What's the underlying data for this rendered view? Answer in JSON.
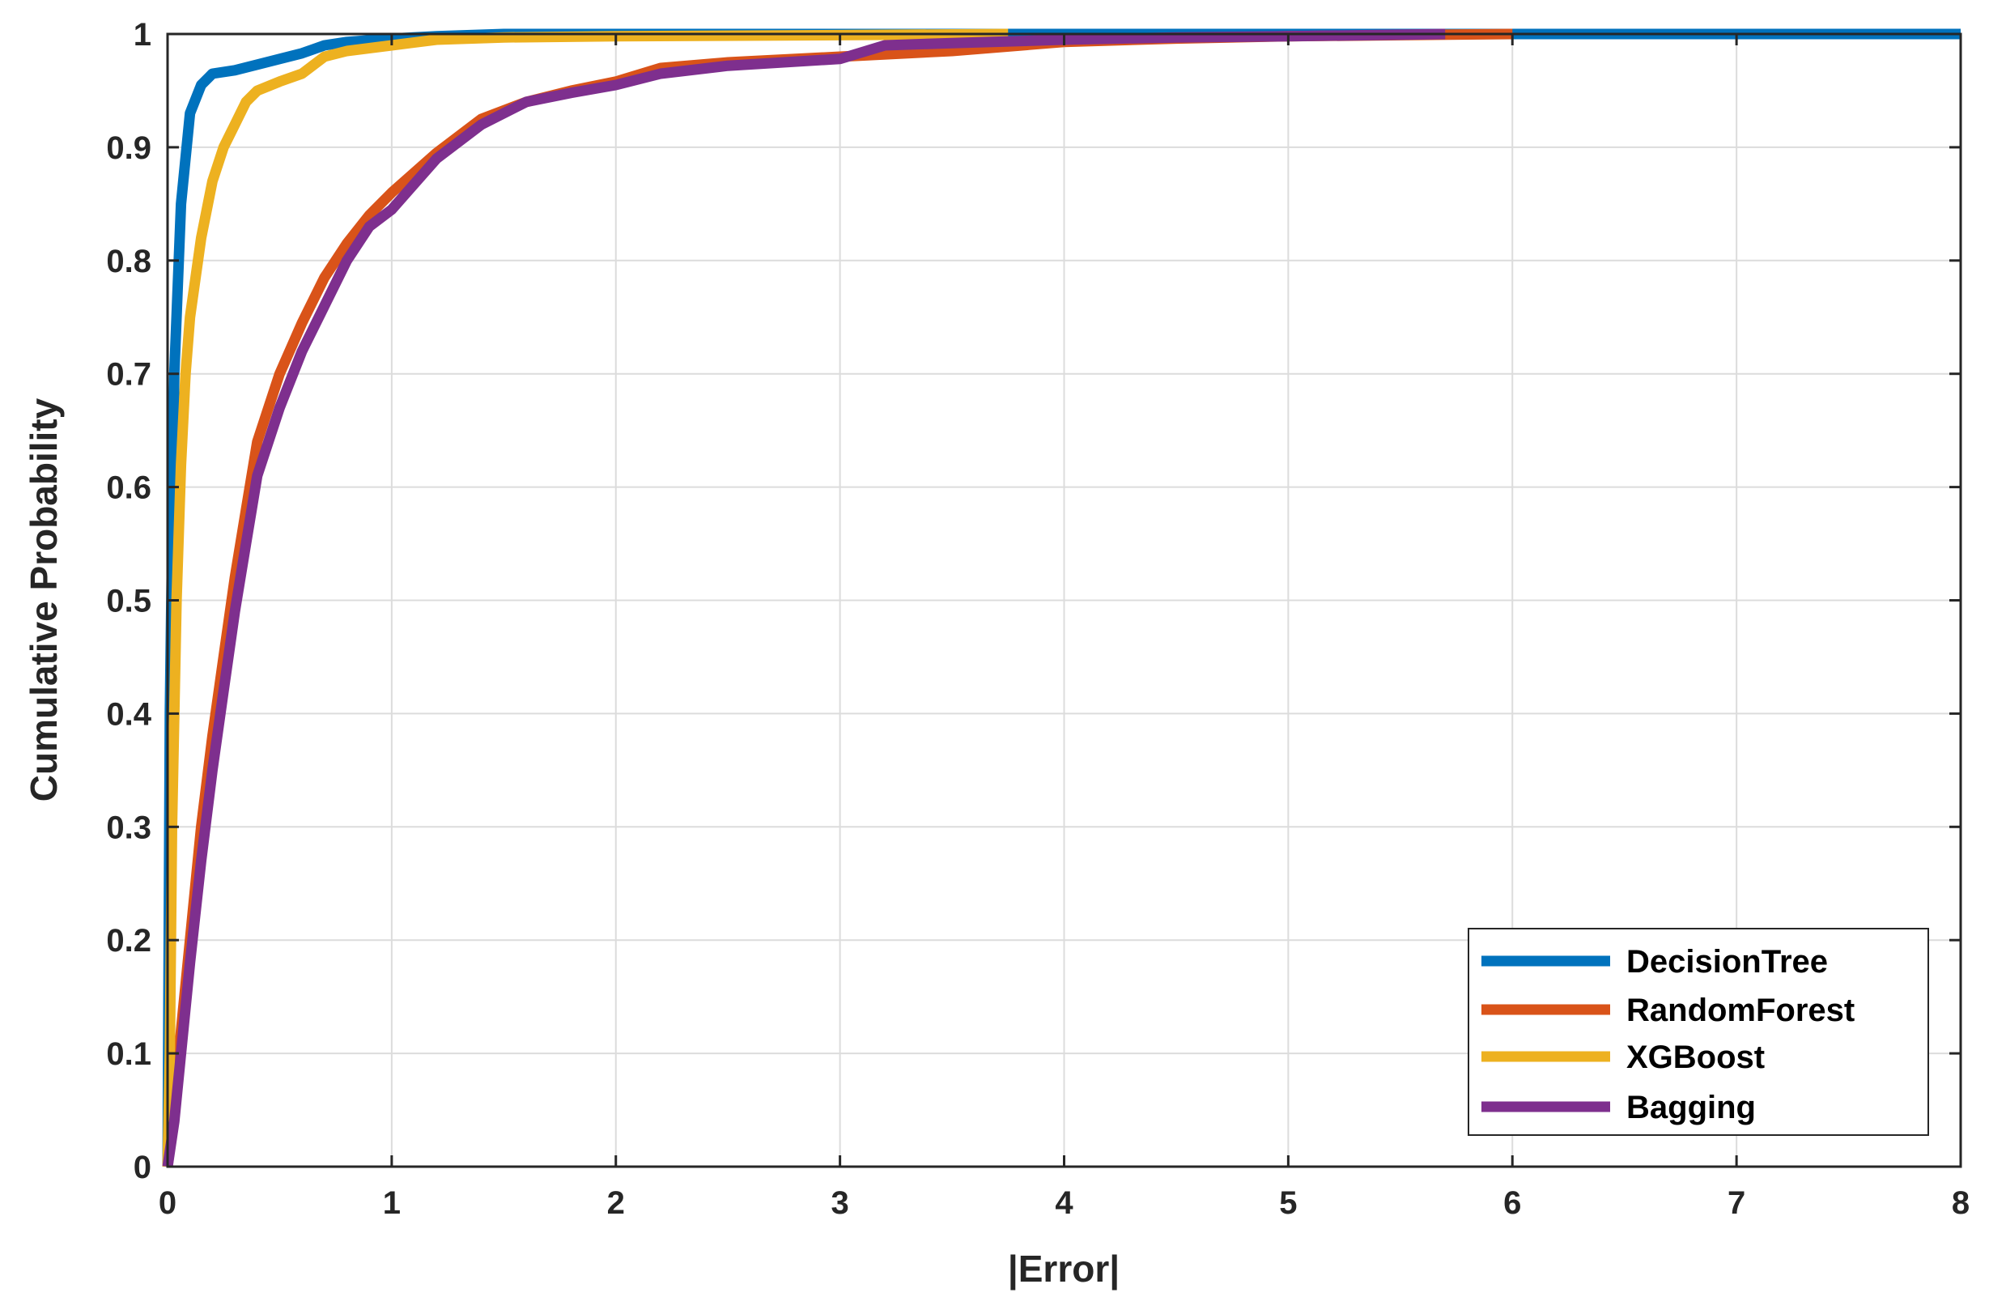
{
  "chart_data": {
    "type": "line",
    "title": "",
    "xlabel": "|Error|",
    "ylabel": "Cumulative Probability",
    "xlim": [
      0,
      8
    ],
    "ylim": [
      0,
      1
    ],
    "x_ticks": [
      0,
      1,
      2,
      3,
      4,
      5,
      6,
      7,
      8
    ],
    "y_ticks": [
      0,
      0.1,
      0.2,
      0.3,
      0.4,
      0.5,
      0.6,
      0.7,
      0.8,
      0.9,
      1
    ],
    "grid": true,
    "legend_position": "bottom-right",
    "series": [
      {
        "name": "DecisionTree",
        "color": "#0072BD",
        "points": [
          [
            0,
            0
          ],
          [
            0.01,
            0.4
          ],
          [
            0.03,
            0.7
          ],
          [
            0.06,
            0.85
          ],
          [
            0.1,
            0.93
          ],
          [
            0.15,
            0.955
          ],
          [
            0.2,
            0.965
          ],
          [
            0.3,
            0.968
          ],
          [
            0.4,
            0.973
          ],
          [
            0.5,
            0.978
          ],
          [
            0.6,
            0.983
          ],
          [
            0.7,
            0.99
          ],
          [
            0.8,
            0.993
          ],
          [
            1.0,
            0.996
          ],
          [
            1.2,
            0.998
          ],
          [
            1.5,
            1.0
          ],
          [
            8,
            1.0
          ]
        ]
      },
      {
        "name": "RandomForest",
        "color": "#D95319",
        "points": [
          [
            0,
            0
          ],
          [
            0.03,
            0.05
          ],
          [
            0.06,
            0.12
          ],
          [
            0.1,
            0.2
          ],
          [
            0.15,
            0.3
          ],
          [
            0.2,
            0.38
          ],
          [
            0.25,
            0.45
          ],
          [
            0.3,
            0.52
          ],
          [
            0.35,
            0.58
          ],
          [
            0.4,
            0.64
          ],
          [
            0.5,
            0.7
          ],
          [
            0.6,
            0.745
          ],
          [
            0.7,
            0.785
          ],
          [
            0.8,
            0.815
          ],
          [
            0.9,
            0.84
          ],
          [
            1.0,
            0.86
          ],
          [
            1.2,
            0.895
          ],
          [
            1.4,
            0.925
          ],
          [
            1.6,
            0.94
          ],
          [
            1.8,
            0.95
          ],
          [
            2.0,
            0.958
          ],
          [
            2.2,
            0.97
          ],
          [
            2.5,
            0.975
          ],
          [
            3.0,
            0.98
          ],
          [
            3.5,
            0.985
          ],
          [
            4.0,
            0.993
          ],
          [
            4.5,
            0.996
          ],
          [
            5.0,
            0.998
          ],
          [
            5.5,
            0.999
          ],
          [
            6.0,
            1.0
          ]
        ]
      },
      {
        "name": "XGBoost",
        "color": "#EDB120",
        "points": [
          [
            0,
            0
          ],
          [
            0.01,
            0.1
          ],
          [
            0.02,
            0.3
          ],
          [
            0.04,
            0.5
          ],
          [
            0.06,
            0.62
          ],
          [
            0.08,
            0.7
          ],
          [
            0.1,
            0.75
          ],
          [
            0.15,
            0.82
          ],
          [
            0.2,
            0.87
          ],
          [
            0.25,
            0.9
          ],
          [
            0.3,
            0.92
          ],
          [
            0.35,
            0.94
          ],
          [
            0.4,
            0.95
          ],
          [
            0.5,
            0.958
          ],
          [
            0.6,
            0.965
          ],
          [
            0.7,
            0.98
          ],
          [
            0.8,
            0.985
          ],
          [
            1.0,
            0.99
          ],
          [
            1.2,
            0.995
          ],
          [
            1.5,
            0.997
          ],
          [
            2.0,
            0.998
          ],
          [
            3.0,
            0.999
          ],
          [
            3.75,
            1.0
          ]
        ]
      },
      {
        "name": "Bagging",
        "color": "#7E2F8E",
        "points": [
          [
            0,
            0
          ],
          [
            0.03,
            0.04
          ],
          [
            0.06,
            0.1
          ],
          [
            0.1,
            0.18
          ],
          [
            0.15,
            0.27
          ],
          [
            0.2,
            0.35
          ],
          [
            0.25,
            0.42
          ],
          [
            0.3,
            0.49
          ],
          [
            0.35,
            0.55
          ],
          [
            0.4,
            0.61
          ],
          [
            0.5,
            0.67
          ],
          [
            0.6,
            0.72
          ],
          [
            0.7,
            0.76
          ],
          [
            0.8,
            0.8
          ],
          [
            0.9,
            0.83
          ],
          [
            1.0,
            0.845
          ],
          [
            1.2,
            0.89
          ],
          [
            1.4,
            0.92
          ],
          [
            1.6,
            0.94
          ],
          [
            1.8,
            0.948
          ],
          [
            2.0,
            0.955
          ],
          [
            2.2,
            0.965
          ],
          [
            2.5,
            0.972
          ],
          [
            3.0,
            0.978
          ],
          [
            3.2,
            0.99
          ],
          [
            3.5,
            0.992
          ],
          [
            4.0,
            0.995
          ],
          [
            4.5,
            0.997
          ],
          [
            5.0,
            0.998
          ],
          [
            5.7,
            1.0
          ]
        ]
      }
    ]
  }
}
